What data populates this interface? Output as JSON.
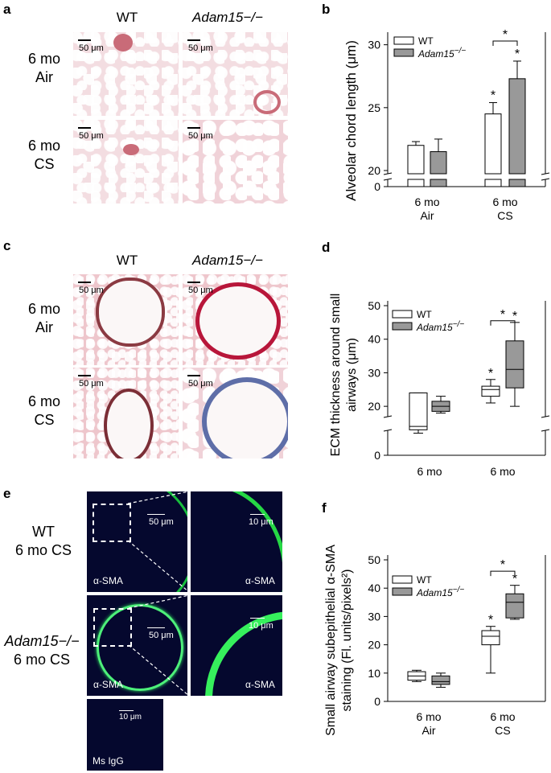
{
  "panels": {
    "a": {
      "letter": "a",
      "col_headers": [
        "WT",
        "Adam15−/−"
      ],
      "row_labels": [
        [
          "6 mo",
          "Air"
        ],
        [
          "6 mo",
          "CS"
        ]
      ],
      "scale_label": "50 μm"
    },
    "b": {
      "letter": "b",
      "ylabel": "Alveolar chord length (μm)",
      "legend": [
        "WT",
        "Adam15−/−"
      ],
      "groups": [
        [
          "6 mo",
          "Air"
        ],
        [
          "6 mo",
          "CS"
        ]
      ],
      "yticks": [
        "0",
        "20",
        "25",
        "30"
      ],
      "star": "*"
    },
    "c": {
      "letter": "c",
      "col_headers": [
        "WT",
        "Adam15−/−"
      ],
      "row_labels": [
        [
          "6 mo",
          "Air"
        ],
        [
          "6 mo",
          "CS"
        ]
      ],
      "scale_label": "50 μm"
    },
    "d": {
      "letter": "d",
      "ylabel_lines": [
        "ECM thickness around small",
        "airways (μm)"
      ],
      "legend": [
        "WT",
        "Adam15−/−"
      ],
      "groups": [
        [
          "6 mo",
          "Air"
        ],
        [
          "6 mo",
          "CS"
        ]
      ],
      "yticks": [
        "0",
        "20",
        "30",
        "40",
        "50"
      ],
      "star": "*"
    },
    "e": {
      "letter": "e",
      "row_labels": [
        [
          "WT",
          "6 mo CS"
        ],
        [
          "Adam15−/−",
          "6 mo CS"
        ]
      ],
      "stain": "α-SMA",
      "control": "Ms IgG",
      "scale_50": "50 μm",
      "scale_10": "10 μm"
    },
    "f": {
      "letter": "f",
      "ylabel_lines": [
        "Small airway subepithelial α-SMA",
        "staining (Fl. units/pixels²)"
      ],
      "legend": [
        "WT",
        "Adam15−/−"
      ],
      "groups": [
        [
          "6 mo",
          "Air"
        ],
        [
          "6 mo",
          "CS"
        ]
      ],
      "yticks": [
        "0",
        "10",
        "20",
        "30",
        "40",
        "50"
      ],
      "star": "*"
    }
  },
  "chart_data": [
    {
      "type": "bar",
      "panel": "b",
      "ylabel": "Alveolar chord length (μm)",
      "axis_break": [
        0,
        20
      ],
      "ylim": [
        20,
        31
      ],
      "categories": [
        "6 mo Air",
        "6 mo CS"
      ],
      "series": [
        {
          "name": "WT",
          "values": [
            22.0,
            24.5
          ],
          "error": [
            0.3,
            0.9
          ],
          "color": "#ffffff"
        },
        {
          "name": "Adam15−/−",
          "values": [
            21.5,
            27.3
          ],
          "error": [
            1.0,
            1.4
          ],
          "color": "#999999"
        }
      ],
      "significance": [
        "WT CS vs WT Air",
        "Adam15−/− CS vs Adam15−/− Air",
        "WT CS vs Adam15−/− CS"
      ]
    },
    {
      "type": "box",
      "panel": "d",
      "ylim": [
        0,
        50
      ],
      "axis_break": [
        5,
        15
      ],
      "categories": [
        "6 mo Air",
        "6 mo CS"
      ],
      "series": [
        {
          "name": "WT",
          "color": "#ffffff",
          "boxes": [
            {
              "min": 12,
              "q1": 13,
              "median": 14,
              "q3": 24,
              "max": 24
            },
            {
              "min": 21,
              "q1": 23,
              "median": 25,
              "q3": 26,
              "max": 28
            }
          ]
        },
        {
          "name": "Adam15−/−",
          "color": "#999999",
          "boxes": [
            {
              "min": 18,
              "q1": 18.5,
              "median": 20,
              "q3": 21.5,
              "max": 23
            },
            {
              "min": 20,
              "q1": 25.5,
              "median": 31,
              "q3": 39.5,
              "max": 45
            }
          ]
        }
      ]
    },
    {
      "type": "box",
      "panel": "f",
      "ylim": [
        0,
        50
      ],
      "categories": [
        "6 mo Air",
        "6 mo CS"
      ],
      "series": [
        {
          "name": "WT",
          "color": "#ffffff",
          "boxes": [
            {
              "min": 7,
              "q1": 7.5,
              "median": 9,
              "q3": 10.5,
              "max": 11
            },
            {
              "min": 10,
              "q1": 20,
              "median": 23,
              "q3": 25,
              "max": 26.5
            }
          ]
        },
        {
          "name": "Adam15−/−",
          "color": "#999999",
          "boxes": [
            {
              "min": 5,
              "q1": 6,
              "median": 7,
              "q3": 9,
              "max": 10
            },
            {
              "min": 29,
              "q1": 29.5,
              "median": 35,
              "q3": 38,
              "max": 41
            }
          ]
        }
      ]
    }
  ]
}
